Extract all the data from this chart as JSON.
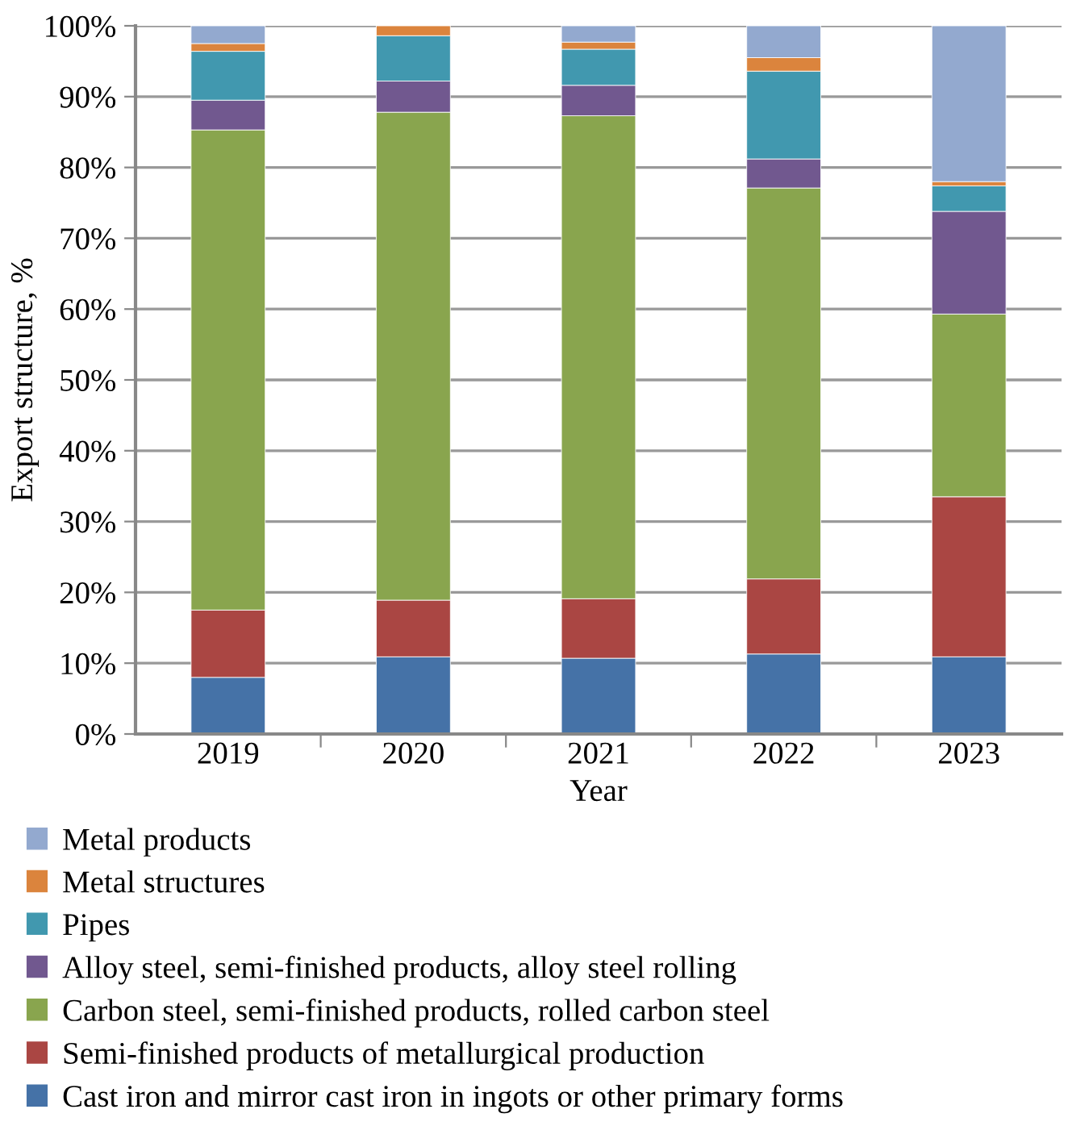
{
  "chart_data": {
    "type": "bar",
    "stacked": true,
    "xlabel": "Year",
    "ylabel": "Export structure, %",
    "categories": [
      "2019",
      "2020",
      "2021",
      "2022",
      "2023"
    ],
    "ylim": [
      0,
      100
    ],
    "yticks": [
      {
        "value": 0,
        "label": "0%"
      },
      {
        "value": 10,
        "label": "10%"
      },
      {
        "value": 20,
        "label": "20%"
      },
      {
        "value": 30,
        "label": "30%"
      },
      {
        "value": 40,
        "label": "40%"
      },
      {
        "value": 50,
        "label": "50%"
      },
      {
        "value": 60,
        "label": "60%"
      },
      {
        "value": 70,
        "label": "70%"
      },
      {
        "value": 80,
        "label": "80%"
      },
      {
        "value": 90,
        "label": "90%"
      },
      {
        "value": 100,
        "label": "100%"
      }
    ],
    "grid": "y",
    "legend": "bottom",
    "series": [
      {
        "name": "Cast iron and mirror cast iron in ingots or other primary forms",
        "color": "#4572a7",
        "values": [
          8.0,
          10.9,
          10.7,
          11.3,
          10.9
        ]
      },
      {
        "name": "Semi-finished products of metallurgical production",
        "color": "#aa4643",
        "values": [
          9.5,
          8.0,
          8.4,
          10.6,
          22.6
        ]
      },
      {
        "name": "Carbon steel, semi-finished products, rolled carbon steel",
        "color": "#89a54e",
        "values": [
          67.8,
          68.9,
          68.2,
          55.2,
          25.8
        ]
      },
      {
        "name": "Alloy steel, semi-finished products, alloy steel rolling",
        "color": "#71588f",
        "values": [
          4.2,
          4.4,
          4.3,
          4.1,
          14.5
        ]
      },
      {
        "name": "Pipes",
        "color": "#4198af",
        "values": [
          6.9,
          6.4,
          5.1,
          12.4,
          3.6
        ]
      },
      {
        "name": "Metal structures",
        "color": "#db843d",
        "values": [
          1.1,
          1.4,
          1.0,
          1.9,
          0.6
        ]
      },
      {
        "name": "Metal products",
        "color": "#93a9cf",
        "values": [
          2.5,
          null,
          2.3,
          4.5,
          22.0
        ]
      }
    ]
  }
}
